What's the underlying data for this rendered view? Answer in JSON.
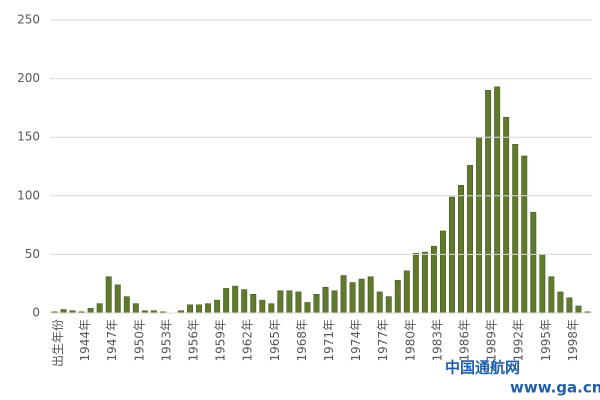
{
  "chart_data": {
    "type": "bar",
    "categories": [
      "出生年份",
      null,
      null,
      "1944年",
      null,
      null,
      "1947年",
      null,
      null,
      "1950年",
      null,
      null,
      "1953年",
      null,
      null,
      "1956年",
      null,
      null,
      "1959年",
      null,
      null,
      "1962年",
      null,
      null,
      "1965年",
      null,
      null,
      "1968年",
      null,
      null,
      "1971年",
      null,
      null,
      "1974年",
      null,
      null,
      "1977年",
      null,
      null,
      "1980年",
      null,
      null,
      "1983年",
      null,
      null,
      "1986年",
      null,
      null,
      "1989年",
      null,
      null,
      "1992年",
      null,
      null,
      "1995年",
      null,
      null,
      "1998年",
      null,
      null
    ],
    "values": [
      1,
      3,
      2,
      1,
      4,
      8,
      31,
      24,
      14,
      8,
      2,
      2,
      1,
      0,
      2,
      7,
      7,
      8,
      11,
      21,
      23,
      20,
      16,
      11,
      8,
      19,
      19,
      18,
      9,
      16,
      22,
      19,
      32,
      26,
      29,
      31,
      18,
      14,
      28,
      36,
      51,
      52,
      57,
      70,
      99,
      109,
      126,
      150,
      190,
      193,
      167,
      144,
      134,
      86,
      50,
      31,
      18,
      13,
      6,
      1
    ],
    "color": "#5f7a2c",
    "ylim": [
      0,
      250
    ],
    "yticks": [
      0,
      50,
      100,
      150,
      200,
      250
    ],
    "grid": true,
    "watermark": [
      "中国通航网",
      "www.ga.cn"
    ]
  }
}
